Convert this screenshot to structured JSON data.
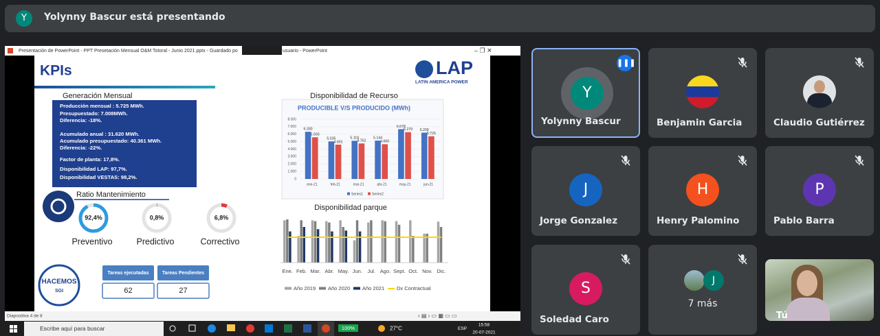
{
  "presenter_bar": {
    "initial": "Y",
    "text": "Yolynny Bascur está presentando"
  },
  "window": {
    "title": "Presentación de PowerPoint - PPT Presetación Mensual O&M Totoral - Junio 2021.pptx - Guardado po",
    "title_end": "usuario - PowerPoint",
    "status": "Diapositiva 4 de 8"
  },
  "slide": {
    "title": "KPIs",
    "logo": "LAP",
    "logo_sub": "LATIN AMERICA POWER",
    "section1": "Generación Mensual",
    "summary": [
      "Producción mensual : 5.725 MWh.",
      "Presupuestado: 7.008MWh.",
      "Diferencia: -18%.",
      "Acumulado anual : 31.620 MWh.",
      "Acumulado presupuestado: 40.361 MWh.",
      "Diferencia: -22%.",
      "Factor de planta: 17,8%.",
      "Disponibilidad LAP: 97,7%.",
      "Disponibilidad VESTAS: 98,2%."
    ],
    "section2": "Ratio Mantenimiento",
    "gauges": [
      {
        "name": "Preventivo",
        "value": 92.4,
        "label": "92,4%",
        "color": "#2e9be0"
      },
      {
        "name": "Predictivo",
        "value": 0.8,
        "label": "0,8%",
        "color": "#9e9e9e"
      },
      {
        "name": "Correctivo",
        "value": 6.8,
        "label": "6,8%",
        "color": "#e53935"
      }
    ],
    "badge": [
      "HACEMOS",
      "SGI"
    ],
    "tasks": [
      {
        "name": "Tareas ejecutadas",
        "value": 62
      },
      {
        "name": "Tareas Pendientes",
        "value": 27
      }
    ]
  },
  "chart_data": [
    {
      "type": "bar",
      "title": "Disponibilidad de Recurso",
      "subtitle": "PRODUCIBLE V/S PRODUCIDO (MWh)",
      "categories": [
        "ene-21",
        "feb-21",
        "mar-21",
        "abr-21",
        "may-21",
        "jun-21"
      ],
      "series": [
        {
          "name": "Series1",
          "color": "#4472c4",
          "values": [
            6330,
            5035,
            5118,
            5144,
            6678,
            6209
          ],
          "value_labels": [
            "6.330",
            "5.035",
            "5.118",
            "5.144",
            "6.678",
            "6.209"
          ]
        },
        {
          "name": "Series2",
          "color": "#e0504a",
          "values": [
            5593,
            4601,
            4762,
            4660,
            6279,
            5725
          ],
          "value_labels": [
            "5.593",
            "4.601",
            "4.762",
            "4.660",
            "6.279",
            "5.725"
          ]
        }
      ],
      "ylim": [
        0,
        8000
      ],
      "yticks": [
        0,
        {
          "value": 1000,
          "label": "1.000"
        },
        {
          "value": 2000,
          "label": "2.000"
        },
        {
          "value": 3000,
          "label": "3.000"
        },
        {
          "value": 4000,
          "label": "4.000"
        },
        {
          "value": 5000,
          "label": "5.000"
        },
        {
          "value": 6000,
          "label": "6.000"
        },
        {
          "value": 7000,
          "label": "7.000"
        },
        {
          "value": 8000,
          "label": "8.000"
        }
      ],
      "grid": true
    },
    {
      "type": "bar",
      "title": "Disponibilidad parque",
      "categories": [
        "Ene.",
        "Feb.",
        "Mar.",
        "Abr.",
        "May.",
        "Jun.",
        "Jul.",
        "Ago.",
        "Sept.",
        "Oct.",
        "Nov.",
        "Dic."
      ],
      "series": [
        {
          "name": "Año 2019",
          "color": "#a6a6a6",
          "values": [
            95,
            60,
            95,
            93,
            95,
            50,
            90,
            95,
            93,
            95,
            65,
            92
          ]
        },
        {
          "name": "Año 2020",
          "color": "#7f7f7f",
          "values": [
            97,
            95,
            93,
            90,
            80,
            95,
            95,
            93,
            85,
            60,
            65,
            80
          ]
        },
        {
          "name": "Año 2021",
          "color": "#1f3864",
          "values": [
            70,
            80,
            75,
            70,
            72,
            70,
            null,
            null,
            null,
            null,
            null,
            null
          ]
        },
        {
          "name": "Dx Contractual",
          "type": "line",
          "color": "#ffd700",
          "values": [
            57,
            57,
            57,
            57,
            57,
            57,
            57,
            57,
            57,
            57,
            57,
            57
          ]
        }
      ],
      "ylim": [
        0,
        100
      ],
      "grid": false
    }
  ],
  "participants": [
    {
      "name": "Yolynny Bascur",
      "initial": "Y",
      "color": "#00897b"
    },
    {
      "name": "Benjamin Garcia"
    },
    {
      "name": "Claudio Gutiérrez"
    },
    {
      "name": "Jorge Gonzalez",
      "initial": "J",
      "color": "#1565c0"
    },
    {
      "name": "Henry Palomino",
      "initial": "H",
      "color": "#f4511e"
    },
    {
      "name": "Pablo Barra",
      "initial": "P",
      "color": "#5e35b1"
    },
    {
      "name": "Soledad Caro",
      "initial": "S",
      "color": "#d81b60"
    },
    {
      "name": "7 más",
      "initial": "J",
      "color": "#00796b"
    },
    {
      "name": "Tú"
    }
  ],
  "taskbar": {
    "search": "Escribe aquí para buscar",
    "battery": "100%",
    "weather": "27°C",
    "lang": "ESP",
    "time": "15:58",
    "date": "20-07-2021"
  }
}
